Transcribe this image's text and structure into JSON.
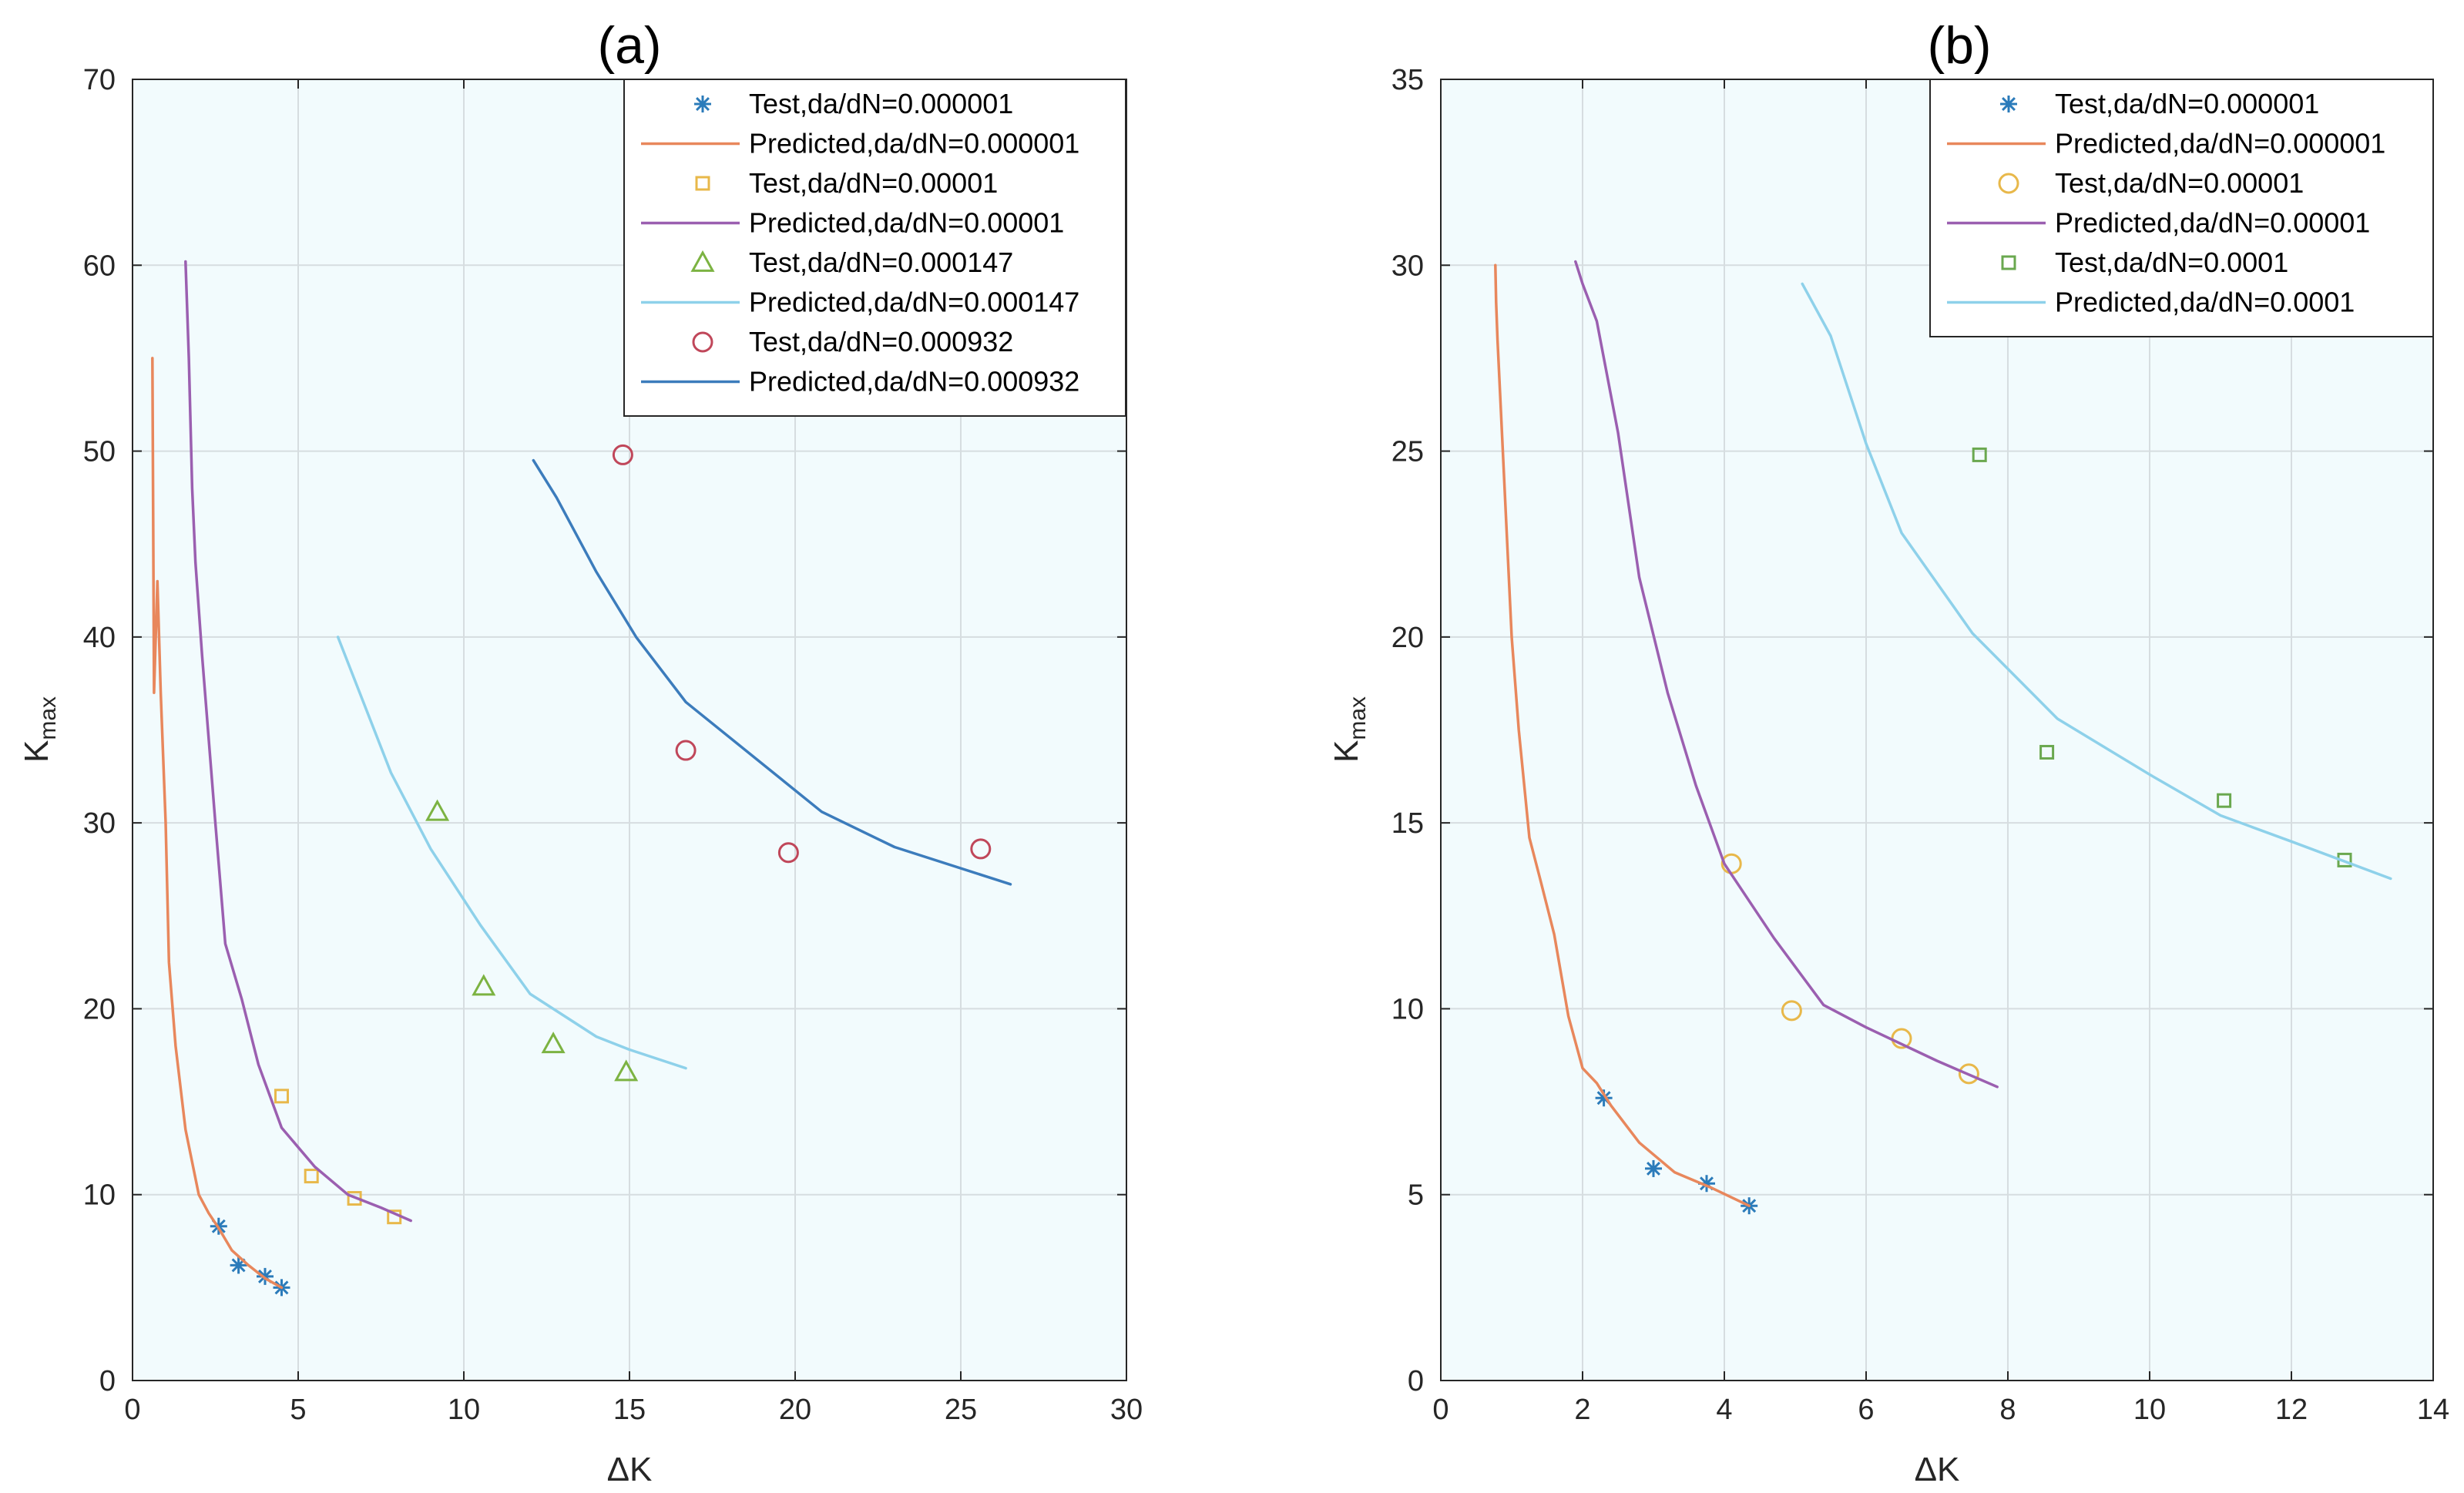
{
  "chart_data": [
    {
      "type": "line",
      "title": "(a)",
      "xlabel": "ΔK",
      "ylabel": "K",
      "ylabel_sub": "max",
      "xlim": [
        0,
        30
      ],
      "ylim": [
        0,
        70
      ],
      "xticks": [
        0,
        5,
        10,
        15,
        20,
        25,
        30
      ],
      "yticks": [
        0,
        10,
        20,
        30,
        40,
        50,
        60,
        70
      ],
      "grid": true,
      "legend_position": "top-right",
      "series": [
        {
          "name": "Test,da/dN=0.000001",
          "kind": "marker",
          "marker": "asterisk",
          "color": "#2b7bba",
          "x": [
            2.6,
            3.2,
            4.0,
            4.5
          ],
          "y": [
            8.3,
            6.2,
            5.6,
            5.0
          ]
        },
        {
          "name": "Predicted,da/dN=0.000001",
          "kind": "line",
          "color": "#e8875c",
          "x": [
            4.5,
            4.0,
            3.5,
            3.0,
            2.6,
            2.3,
            2.0,
            1.6,
            1.3,
            1.1,
            1.0,
            0.85,
            0.75,
            0.65,
            0.6
          ],
          "y": [
            5.0,
            5.5,
            6.2,
            7.0,
            8.2,
            9.0,
            10.0,
            13.5,
            18.0,
            22.5,
            30.0,
            37.0,
            43.0,
            37.0,
            55.0
          ]
        },
        {
          "name": "Test,da/dN=0.00001",
          "kind": "marker",
          "marker": "square",
          "color": "#e8b84a",
          "x": [
            4.5,
            5.4,
            6.7,
            7.9
          ],
          "y": [
            15.3,
            11.0,
            9.8,
            8.8
          ]
        },
        {
          "name": "Predicted,da/dN=0.00001",
          "kind": "line",
          "color": "#9b5fb0",
          "x": [
            8.4,
            7.5,
            6.5,
            5.5,
            4.5,
            3.8,
            3.3,
            2.8,
            2.5,
            2.1,
            1.9,
            1.8,
            1.7,
            1.6
          ],
          "y": [
            8.6,
            9.3,
            10.0,
            11.5,
            13.6,
            17.0,
            20.5,
            23.5,
            30.0,
            39.0,
            44.0,
            48.0,
            55.0,
            60.2
          ]
        },
        {
          "name": "Test,da/dN=0.000147",
          "kind": "marker",
          "marker": "triangle",
          "color": "#7cb342",
          "x": [
            9.2,
            10.6,
            12.7,
            14.9
          ],
          "y": [
            30.6,
            21.2,
            18.1,
            16.6
          ]
        },
        {
          "name": "Predicted,da/dN=0.000147",
          "kind": "line",
          "color": "#8ed1ea",
          "x": [
            16.7,
            15.0,
            14.0,
            12.0,
            10.5,
            9.0,
            7.8,
            6.2
          ],
          "y": [
            16.8,
            17.8,
            18.5,
            20.8,
            24.5,
            28.6,
            32.7,
            40.0
          ]
        },
        {
          "name": "Test,da/dN=0.000932",
          "kind": "marker",
          "marker": "circle",
          "color": "#c0475a",
          "x": [
            14.8,
            16.7,
            19.8,
            25.6
          ],
          "y": [
            49.8,
            33.9,
            28.4,
            28.6
          ]
        },
        {
          "name": "Predicted,da/dN=0.000932",
          "kind": "line",
          "color": "#3c7cbc",
          "x": [
            26.5,
            23.0,
            20.8,
            16.7,
            15.2,
            14.0,
            12.8,
            12.1
          ],
          "y": [
            26.7,
            28.7,
            30.6,
            36.5,
            40.0,
            43.5,
            47.5,
            49.5
          ]
        }
      ]
    },
    {
      "type": "line",
      "title": "(b)",
      "xlabel": "ΔK",
      "ylabel": "K",
      "ylabel_sub": "max",
      "xlim": [
        0,
        14
      ],
      "ylim": [
        0,
        35
      ],
      "xticks": [
        0,
        2,
        4,
        6,
        8,
        10,
        12,
        14
      ],
      "yticks": [
        0,
        5,
        10,
        15,
        20,
        25,
        30,
        35
      ],
      "grid": true,
      "legend_position": "top-right",
      "series": [
        {
          "name": "Test,da/dN=0.000001",
          "kind": "marker",
          "marker": "asterisk",
          "color": "#2b7bba",
          "x": [
            2.3,
            3.0,
            3.75,
            4.35
          ],
          "y": [
            7.6,
            5.7,
            5.3,
            4.7
          ]
        },
        {
          "name": "Predicted,da/dN=0.000001",
          "kind": "line",
          "color": "#e8875c",
          "x": [
            4.35,
            3.8,
            3.3,
            2.8,
            2.4,
            2.2,
            2.0,
            1.8,
            1.6,
            1.4,
            1.25,
            1.1,
            1.0,
            0.9,
            0.8,
            0.78,
            0.77
          ],
          "y": [
            4.7,
            5.2,
            5.6,
            6.4,
            7.4,
            8.0,
            8.4,
            9.8,
            12.0,
            13.5,
            14.6,
            17.5,
            20.0,
            24.0,
            28.0,
            29.0,
            30.0
          ]
        },
        {
          "name": "Test,da/dN=0.00001",
          "kind": "marker",
          "marker": "circle",
          "color": "#e8b84a",
          "x": [
            4.1,
            4.95,
            6.5,
            7.45
          ],
          "y": [
            13.9,
            9.95,
            9.2,
            8.25
          ]
        },
        {
          "name": "Predicted,da/dN=0.00001",
          "kind": "line",
          "color": "#9b5fb0",
          "x": [
            7.85,
            7.0,
            6.0,
            5.4,
            4.7,
            4.0,
            3.6,
            3.2,
            2.8,
            2.5,
            2.2,
            2.0,
            1.9
          ],
          "y": [
            7.9,
            8.6,
            9.5,
            10.1,
            11.9,
            13.9,
            16.0,
            18.5,
            21.6,
            25.5,
            28.5,
            29.5,
            30.1
          ]
        },
        {
          "name": "Test,da/dN=0.0001",
          "kind": "marker",
          "marker": "square",
          "color": "#6aa84f",
          "x": [
            7.6,
            8.55,
            11.05,
            12.75
          ],
          "y": [
            24.9,
            16.9,
            15.6,
            14.0
          ]
        },
        {
          "name": "Predicted,da/dN=0.0001",
          "kind": "line",
          "color": "#8ed1ea",
          "x": [
            13.4,
            12.0,
            11.0,
            10.0,
            8.7,
            7.5,
            6.5,
            6.0,
            5.5,
            5.1
          ],
          "y": [
            13.5,
            14.5,
            15.2,
            16.3,
            17.8,
            20.1,
            22.8,
            25.2,
            28.1,
            29.5
          ]
        }
      ]
    }
  ]
}
